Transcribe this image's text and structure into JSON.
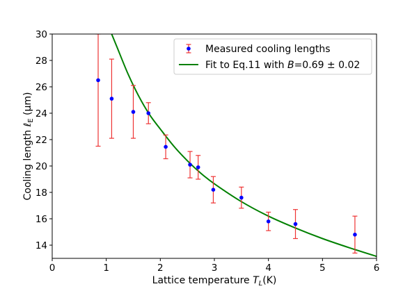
{
  "chart_data": {
    "type": "scatter",
    "xlabel_prefix": "Lattice temperature ",
    "xlabel_var": "T",
    "xlabel_sub": "L",
    "xlabel_suffix": "(K)",
    "ylabel_prefix": "Cooling length ",
    "ylabel_var": "ℓ",
    "ylabel_sub": "E",
    "ylabel_suffix": " (μm)",
    "xlim": [
      0,
      6
    ],
    "ylim": [
      13,
      30
    ],
    "xticks": [
      0,
      1,
      2,
      3,
      4,
      5,
      6
    ],
    "yticks": [
      14,
      16,
      18,
      20,
      22,
      24,
      26,
      28,
      30
    ],
    "legend_position": "top-right",
    "series": [
      {
        "name": "Measured cooling lengths",
        "kind": "errorbar",
        "marker_color": "#0000ff",
        "error_color": "#ee3333",
        "x": [
          0.85,
          1.1,
          1.5,
          1.78,
          2.1,
          2.55,
          2.7,
          2.98,
          3.5,
          4.0,
          4.5,
          5.6
        ],
        "y": [
          26.5,
          25.1,
          24.1,
          24.0,
          21.45,
          20.1,
          19.9,
          18.2,
          17.6,
          15.8,
          15.6,
          14.8
        ],
        "err_low": [
          5.0,
          3.0,
          2.0,
          0.8,
          0.9,
          1.0,
          0.9,
          1.0,
          0.8,
          0.7,
          1.1,
          1.4
        ],
        "err_high": [
          3.5,
          3.0,
          2.0,
          0.8,
          0.9,
          1.0,
          0.9,
          1.0,
          0.8,
          0.7,
          1.1,
          1.4
        ]
      },
      {
        "name_prefix": "Fit to Eq.11 with ",
        "name_var": "B",
        "name_suffix": "=0.69 ± 0.02",
        "kind": "line",
        "color": "#008000",
        "model": "y = 32.2 * (x/1.0)^(-0.5) saturating; sampled points",
        "x": [
          1.1,
          1.2,
          1.4,
          1.6,
          1.8,
          2.0,
          2.25,
          2.5,
          2.75,
          3.0,
          3.5,
          4.0,
          4.5,
          5.0,
          5.5,
          6.0
        ],
        "y": [
          30.0,
          29.0,
          27.0,
          25.3,
          23.9,
          22.8,
          21.5,
          20.4,
          19.45,
          18.65,
          17.3,
          16.2,
          15.3,
          14.5,
          13.8,
          13.15
        ]
      }
    ]
  }
}
